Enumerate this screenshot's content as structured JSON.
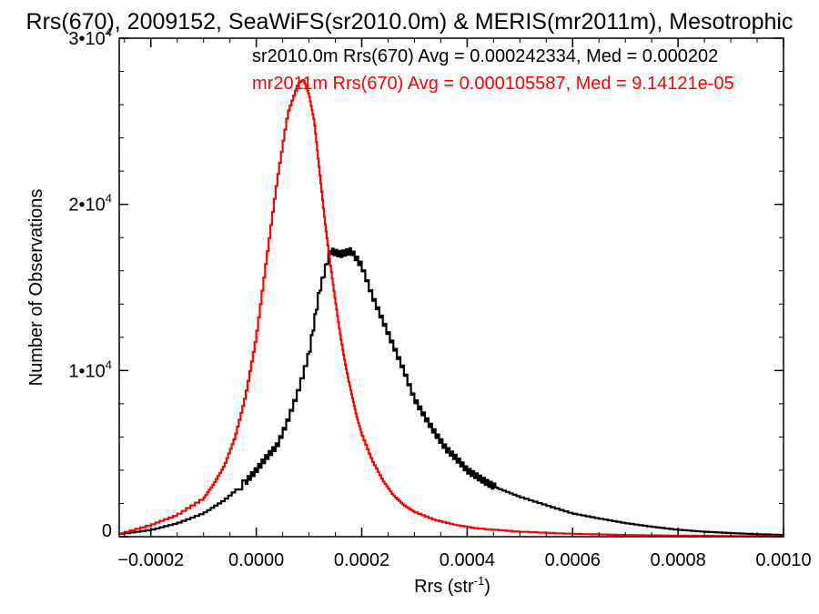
{
  "chart_data": {
    "type": "line",
    "title": "Rrs(670), 2009152, SeaWiFS(sr2010.0m) & MERIS(mr2011m), Mesotrophic",
    "xlabel_main": "Rrs (str",
    "xlabel_sup": "-1",
    "xlabel_close": ")",
    "ylabel": "Number of Observations",
    "xlim": [
      -0.00026,
      0.001
    ],
    "ylim": [
      0,
      30000
    ],
    "x_ticks": [
      {
        "value": -0.0002,
        "label": "−0.0002"
      },
      {
        "value": 0.0,
        "label": "0.0000"
      },
      {
        "value": 0.0002,
        "label": "0.0002"
      },
      {
        "value": 0.0004,
        "label": "0.0004"
      },
      {
        "value": 0.0006,
        "label": "0.0006"
      },
      {
        "value": 0.0008,
        "label": "0.0008"
      },
      {
        "value": 0.001,
        "label": "0.0010"
      }
    ],
    "y_ticks": [
      {
        "value": 0,
        "label": "0",
        "sup": ""
      },
      {
        "value": 10000,
        "label": "1•10",
        "sup": "4"
      },
      {
        "value": 20000,
        "label": "2•10",
        "sup": "4"
      },
      {
        "value": 30000,
        "label": "3•10",
        "sup": "4"
      }
    ],
    "annotations": [
      {
        "text": "sr2010.0m Rrs(670) Avg = 0.000242334, Med = 0.000202",
        "color": "#000000"
      },
      {
        "text": "mr2011m Rrs(670) Avg = 0.000105587, Med = 9.14121e-05",
        "color": "#ff0000"
      }
    ],
    "series": [
      {
        "color": "#000000",
        "points": [
          [
            -0.00026,
            150
          ],
          [
            -0.0002,
            400
          ],
          [
            -0.00015,
            800
          ],
          [
            -0.0001,
            1400
          ],
          [
            -6e-05,
            2200
          ],
          [
            -2e-05,
            3300
          ],
          [
            0.0,
            4000
          ],
          [
            2e-05,
            4800
          ],
          [
            4e-05,
            5500
          ],
          [
            6e-05,
            7000
          ],
          [
            8e-05,
            8800
          ],
          [
            0.0001,
            11000
          ],
          [
            0.00012,
            14800
          ],
          [
            0.00014,
            17200
          ],
          [
            0.00016,
            17000
          ],
          [
            0.00018,
            17200
          ],
          [
            0.0002,
            16300
          ],
          [
            0.00022,
            14500
          ],
          [
            0.00024,
            13000
          ],
          [
            0.00026,
            11500
          ],
          [
            0.00028,
            10000
          ],
          [
            0.0003,
            8300
          ],
          [
            0.00032,
            7200
          ],
          [
            0.00034,
            6200
          ],
          [
            0.00036,
            5300
          ],
          [
            0.00038,
            4700
          ],
          [
            0.0004,
            4000
          ],
          [
            0.00042,
            3600
          ],
          [
            0.00044,
            3200
          ],
          [
            0.00046,
            2900
          ],
          [
            0.0005,
            2400
          ],
          [
            0.00055,
            1900
          ],
          [
            0.0006,
            1400
          ],
          [
            0.00065,
            1100
          ],
          [
            0.0007,
            820
          ],
          [
            0.00075,
            600
          ],
          [
            0.0008,
            420
          ],
          [
            0.00085,
            300
          ],
          [
            0.0009,
            220
          ],
          [
            0.00095,
            150
          ],
          [
            0.001,
            100
          ]
        ]
      },
      {
        "color": "#ff0000",
        "points": [
          [
            -0.00026,
            150
          ],
          [
            -0.0002,
            700
          ],
          [
            -0.00015,
            1300
          ],
          [
            -0.0001,
            2300
          ],
          [
            -8e-05,
            3200
          ],
          [
            -6e-05,
            4300
          ],
          [
            -4e-05,
            6000
          ],
          [
            -2e-05,
            8500
          ],
          [
            0.0,
            12000
          ],
          [
            2e-05,
            16800
          ],
          [
            4e-05,
            21500
          ],
          [
            6e-05,
            25500
          ],
          [
            8e-05,
            27300
          ],
          [
            9e-05,
            27500
          ],
          [
            0.0001,
            26600
          ],
          [
            0.00011,
            25000
          ],
          [
            0.00012,
            22000
          ],
          [
            0.00013,
            19000
          ],
          [
            0.00014,
            16500
          ],
          [
            0.00015,
            14200
          ],
          [
            0.00016,
            12000
          ],
          [
            0.00017,
            10200
          ],
          [
            0.00018,
            8700
          ],
          [
            0.00019,
            7300
          ],
          [
            0.0002,
            6200
          ],
          [
            0.00022,
            4600
          ],
          [
            0.00024,
            3400
          ],
          [
            0.00026,
            2500
          ],
          [
            0.00028,
            1900
          ],
          [
            0.0003,
            1500
          ],
          [
            0.00034,
            1000
          ],
          [
            0.00038,
            700
          ],
          [
            0.00042,
            500
          ],
          [
            0.0005,
            300
          ],
          [
            0.0006,
            170
          ],
          [
            0.0007,
            100
          ],
          [
            0.0008,
            60
          ],
          [
            0.0009,
            40
          ],
          [
            0.001,
            20
          ]
        ]
      }
    ]
  }
}
